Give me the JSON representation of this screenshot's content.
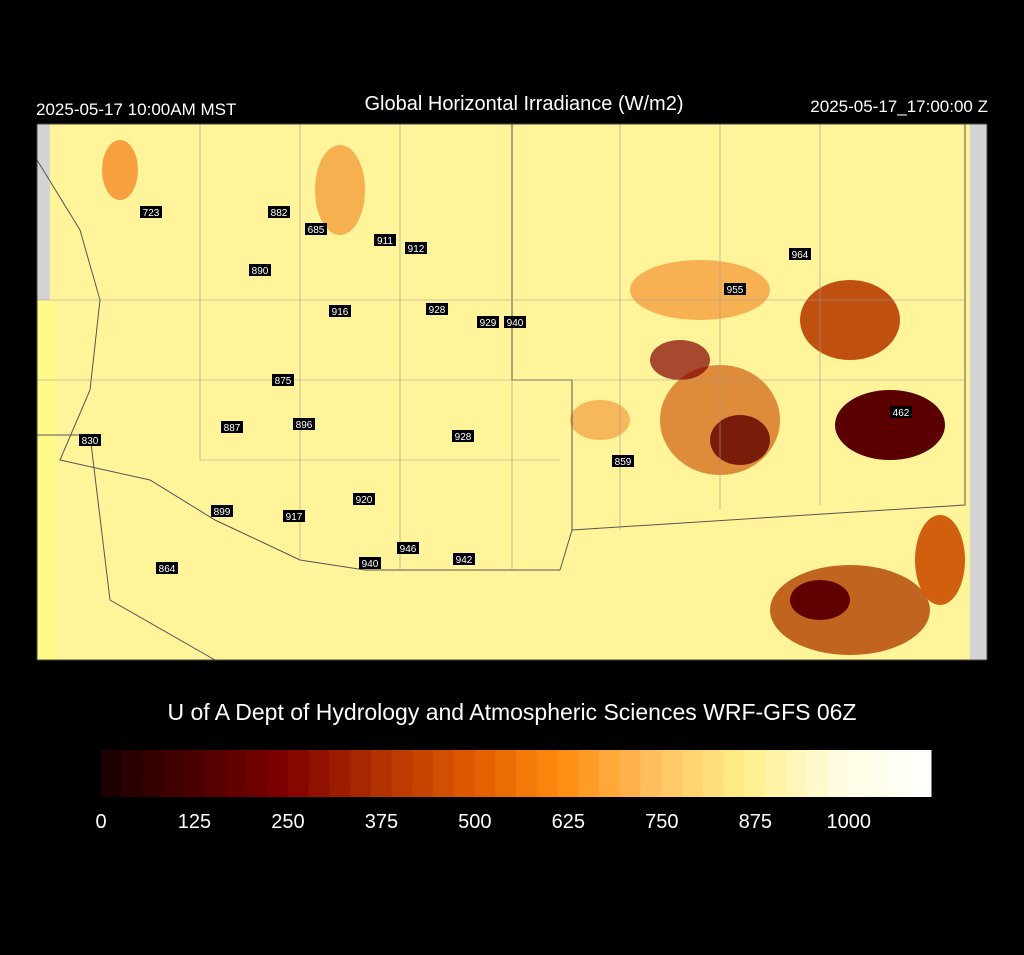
{
  "header": {
    "local_time": "2025-05-17 10:00AM MST",
    "title": "Global Horizontal Irradiance (W/m2)",
    "valid_time": "2025-05-17_17:00:00 Z"
  },
  "stations": [
    723,
    882,
    685,
    911,
    912,
    890,
    916,
    928,
    929,
    940,
    875,
    887,
    896,
    928,
    830,
    920,
    899,
    917,
    946,
    940,
    942,
    864,
    859,
    955,
    964,
    462
  ],
  "footer": "U of A Dept of Hydrology and Atmospheric Sciences WRF-GFS 06Z",
  "colorbar": {
    "range": [
      0,
      1110
    ],
    "ticks": [
      0,
      125,
      250,
      375,
      500,
      625,
      750,
      875,
      1000
    ],
    "colors": [
      "#1a0000",
      "#4a0000",
      "#800000",
      "#b03000",
      "#e05a00",
      "#ff8c10",
      "#ffc060",
      "#fff08a",
      "#fffce0",
      "#ffffff"
    ]
  }
}
